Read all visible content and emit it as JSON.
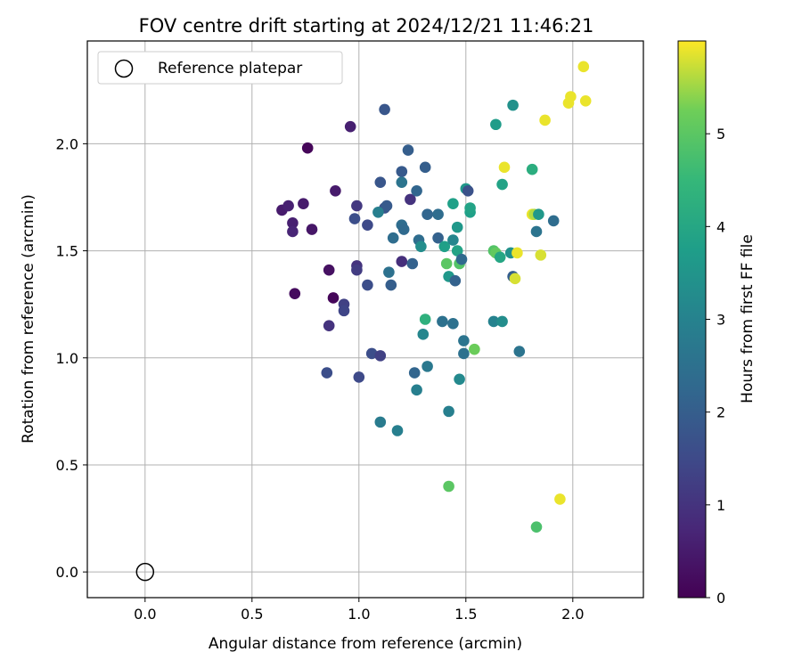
{
  "chart_data": {
    "type": "scatter",
    "title": "FOV centre drift starting at 2024/12/21 11:46:21",
    "xlabel": "Angular distance from reference (arcmin)",
    "ylabel": "Rotation from reference (arcmin)",
    "xlim": [
      -0.27,
      2.33
    ],
    "ylim": [
      -0.12,
      2.48
    ],
    "xticks": [
      0.0,
      0.5,
      1.0,
      1.5,
      2.0
    ],
    "yticks": [
      0.0,
      0.5,
      1.0,
      1.5,
      2.0
    ],
    "grid": true,
    "legend": {
      "position": "top-left",
      "entries": [
        {
          "label": "Reference platepar",
          "marker": "open-circle"
        }
      ]
    },
    "reference_point": {
      "x": 0.0,
      "y": 0.0
    },
    "colorbar": {
      "label": "Hours from first FF file",
      "colormap": "viridis",
      "range": [
        0,
        6
      ],
      "ticks": [
        0,
        1,
        2,
        3,
        4,
        5
      ]
    },
    "points": [
      {
        "x": 0.64,
        "y": 1.69,
        "c": 0.5
      },
      {
        "x": 0.67,
        "y": 1.71,
        "c": 0.6
      },
      {
        "x": 0.69,
        "y": 1.63,
        "c": 0.6
      },
      {
        "x": 0.69,
        "y": 1.59,
        "c": 0.7
      },
      {
        "x": 0.74,
        "y": 1.72,
        "c": 0.5
      },
      {
        "x": 0.76,
        "y": 1.98,
        "c": 0.1
      },
      {
        "x": 0.78,
        "y": 1.6,
        "c": 0.4
      },
      {
        "x": 0.7,
        "y": 1.3,
        "c": 0.2
      },
      {
        "x": 0.86,
        "y": 1.41,
        "c": 0.3
      },
      {
        "x": 0.88,
        "y": 1.28,
        "c": 0.1
      },
      {
        "x": 0.89,
        "y": 1.78,
        "c": 0.5
      },
      {
        "x": 0.96,
        "y": 2.08,
        "c": 0.6
      },
      {
        "x": 0.86,
        "y": 1.15,
        "c": 1.0
      },
      {
        "x": 0.85,
        "y": 0.93,
        "c": 1.6
      },
      {
        "x": 0.93,
        "y": 1.25,
        "c": 1.3
      },
      {
        "x": 0.93,
        "y": 1.22,
        "c": 1.4
      },
      {
        "x": 0.99,
        "y": 1.43,
        "c": 1.0
      },
      {
        "x": 0.99,
        "y": 1.41,
        "c": 1.2
      },
      {
        "x": 0.99,
        "y": 1.71,
        "c": 1.1
      },
      {
        "x": 0.98,
        "y": 1.65,
        "c": 1.6
      },
      {
        "x": 1.0,
        "y": 0.91,
        "c": 1.5
      },
      {
        "x": 1.04,
        "y": 1.62,
        "c": 1.5
      },
      {
        "x": 1.04,
        "y": 1.34,
        "c": 1.6
      },
      {
        "x": 1.06,
        "y": 1.02,
        "c": 1.6
      },
      {
        "x": 1.1,
        "y": 1.01,
        "c": 1.3
      },
      {
        "x": 1.1,
        "y": 1.82,
        "c": 1.8
      },
      {
        "x": 1.12,
        "y": 1.7,
        "c": 1.7
      },
      {
        "x": 1.13,
        "y": 1.71,
        "c": 1.9
      },
      {
        "x": 1.12,
        "y": 2.16,
        "c": 1.8
      },
      {
        "x": 1.09,
        "y": 1.68,
        "c": 2.9
      },
      {
        "x": 1.1,
        "y": 0.7,
        "c": 2.8
      },
      {
        "x": 1.14,
        "y": 1.4,
        "c": 2.5
      },
      {
        "x": 1.15,
        "y": 1.34,
        "c": 2.0
      },
      {
        "x": 1.16,
        "y": 1.56,
        "c": 2.4
      },
      {
        "x": 1.18,
        "y": 0.66,
        "c": 2.9
      },
      {
        "x": 1.2,
        "y": 1.87,
        "c": 1.9
      },
      {
        "x": 1.2,
        "y": 1.82,
        "c": 2.6
      },
      {
        "x": 1.2,
        "y": 1.62,
        "c": 2.4
      },
      {
        "x": 1.2,
        "y": 1.45,
        "c": 0.9
      },
      {
        "x": 1.21,
        "y": 1.6,
        "c": 2.3
      },
      {
        "x": 1.23,
        "y": 1.97,
        "c": 2.0
      },
      {
        "x": 1.24,
        "y": 1.74,
        "c": 1.0
      },
      {
        "x": 1.25,
        "y": 1.44,
        "c": 2.1
      },
      {
        "x": 1.26,
        "y": 0.93,
        "c": 2.2
      },
      {
        "x": 1.27,
        "y": 1.78,
        "c": 2.2
      },
      {
        "x": 1.27,
        "y": 0.85,
        "c": 2.9
      },
      {
        "x": 1.28,
        "y": 1.55,
        "c": 2.4
      },
      {
        "x": 1.29,
        "y": 1.52,
        "c": 3.3
      },
      {
        "x": 1.3,
        "y": 1.11,
        "c": 3.1
      },
      {
        "x": 1.31,
        "y": 1.18,
        "c": 4.3
      },
      {
        "x": 1.31,
        "y": 1.89,
        "c": 2.0
      },
      {
        "x": 1.32,
        "y": 1.67,
        "c": 2.2
      },
      {
        "x": 1.32,
        "y": 0.96,
        "c": 2.7
      },
      {
        "x": 1.37,
        "y": 1.56,
        "c": 2.1
      },
      {
        "x": 1.37,
        "y": 1.67,
        "c": 2.4
      },
      {
        "x": 1.39,
        "y": 1.17,
        "c": 2.5
      },
      {
        "x": 1.4,
        "y": 1.52,
        "c": 3.8
      },
      {
        "x": 1.41,
        "y": 1.44,
        "c": 5.0
      },
      {
        "x": 1.42,
        "y": 1.38,
        "c": 3.6
      },
      {
        "x": 1.42,
        "y": 0.75,
        "c": 2.9
      },
      {
        "x": 1.42,
        "y": 0.4,
        "c": 5.0
      },
      {
        "x": 1.44,
        "y": 1.55,
        "c": 3.1
      },
      {
        "x": 1.44,
        "y": 1.72,
        "c": 3.8
      },
      {
        "x": 1.44,
        "y": 1.16,
        "c": 2.5
      },
      {
        "x": 1.45,
        "y": 1.36,
        "c": 2.1
      },
      {
        "x": 1.46,
        "y": 1.61,
        "c": 3.6
      },
      {
        "x": 1.46,
        "y": 1.5,
        "c": 3.9
      },
      {
        "x": 1.47,
        "y": 1.44,
        "c": 4.9
      },
      {
        "x": 1.47,
        "y": 0.9,
        "c": 3.2
      },
      {
        "x": 1.48,
        "y": 1.46,
        "c": 2.3
      },
      {
        "x": 1.49,
        "y": 1.02,
        "c": 2.5
      },
      {
        "x": 1.49,
        "y": 1.08,
        "c": 2.6
      },
      {
        "x": 1.5,
        "y": 1.79,
        "c": 3.6
      },
      {
        "x": 1.51,
        "y": 1.78,
        "c": 1.7
      },
      {
        "x": 1.52,
        "y": 1.68,
        "c": 3.8
      },
      {
        "x": 1.52,
        "y": 1.7,
        "c": 3.9
      },
      {
        "x": 1.54,
        "y": 1.04,
        "c": 5.2
      },
      {
        "x": 1.63,
        "y": 1.17,
        "c": 3.0
      },
      {
        "x": 1.63,
        "y": 1.5,
        "c": 4.9
      },
      {
        "x": 1.64,
        "y": 2.09,
        "c": 3.7
      },
      {
        "x": 1.64,
        "y": 1.49,
        "c": 5.1
      },
      {
        "x": 1.66,
        "y": 1.47,
        "c": 4.0
      },
      {
        "x": 1.67,
        "y": 1.17,
        "c": 3.3
      },
      {
        "x": 1.67,
        "y": 1.81,
        "c": 3.9
      },
      {
        "x": 1.68,
        "y": 1.89,
        "c": 5.9
      },
      {
        "x": 1.71,
        "y": 1.49,
        "c": 3.4
      },
      {
        "x": 1.72,
        "y": 1.38,
        "c": 2.0
      },
      {
        "x": 1.72,
        "y": 2.18,
        "c": 3.4
      },
      {
        "x": 1.73,
        "y": 1.37,
        "c": 5.8
      },
      {
        "x": 1.74,
        "y": 1.49,
        "c": 5.9
      },
      {
        "x": 1.75,
        "y": 1.03,
        "c": 2.6
      },
      {
        "x": 1.81,
        "y": 1.88,
        "c": 4.2
      },
      {
        "x": 1.81,
        "y": 1.67,
        "c": 5.9
      },
      {
        "x": 1.82,
        "y": 1.67,
        "c": 5.6
      },
      {
        "x": 1.83,
        "y": 0.21,
        "c": 4.8
      },
      {
        "x": 1.83,
        "y": 1.59,
        "c": 2.6
      },
      {
        "x": 1.84,
        "y": 1.67,
        "c": 3.6
      },
      {
        "x": 1.85,
        "y": 1.48,
        "c": 5.8
      },
      {
        "x": 1.87,
        "y": 2.11,
        "c": 5.9
      },
      {
        "x": 1.91,
        "y": 1.64,
        "c": 2.4
      },
      {
        "x": 1.94,
        "y": 0.34,
        "c": 5.9
      },
      {
        "x": 1.98,
        "y": 2.19,
        "c": 5.9
      },
      {
        "x": 1.99,
        "y": 2.22,
        "c": 5.9
      },
      {
        "x": 2.05,
        "y": 2.36,
        "c": 5.9
      },
      {
        "x": 2.06,
        "y": 2.2,
        "c": 5.9
      }
    ]
  }
}
